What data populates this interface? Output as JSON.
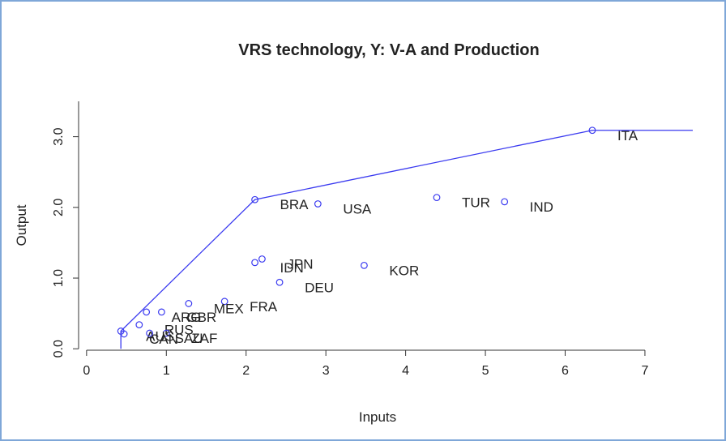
{
  "chart_data": {
    "type": "scatter",
    "title": "VRS technology, Y: V-A and Production",
    "x_label": "Inputs",
    "y_label": "Output",
    "categories": [
      "ITA",
      "BRA",
      "USA",
      "TUR",
      "IND",
      "KOR",
      "JPN",
      "IDN",
      "DEU",
      "FRA",
      "MEX",
      "ARG",
      "GBR",
      "RUS",
      "ZAF",
      "AUS",
      "CAN",
      "SAU"
    ],
    "x": [
      6.34,
      2.11,
      2.9,
      4.39,
      5.24,
      3.48,
      2.2,
      2.11,
      2.42,
      1.73,
      1.28,
      0.75,
      0.94,
      0.66,
      1.0,
      0.43,
      0.47,
      0.79
    ],
    "values": [
      3.09,
      2.11,
      2.05,
      2.14,
      2.08,
      1.18,
      1.27,
      1.22,
      0.94,
      0.67,
      0.64,
      0.52,
      0.52,
      0.34,
      0.22,
      0.25,
      0.21,
      0.22
    ],
    "color": "#3a3af0",
    "frontier": {
      "x": [
        0.43,
        0.43,
        2.11,
        6.34,
        7.6
      ],
      "values": [
        0,
        0.25,
        2.11,
        3.09,
        3.09
      ],
      "color": "#3a3af0"
    },
    "xlim": [
      -0.1,
      7.6
    ],
    "ylim": [
      -0.02,
      3.5
    ],
    "xticks": [
      0,
      1,
      2,
      3,
      4,
      5,
      6,
      7
    ],
    "yticks": [
      {
        "value": 0,
        "label": "0.0"
      },
      {
        "value": 1,
        "label": "1.0"
      },
      {
        "value": 2,
        "label": "2.0"
      },
      {
        "value": 3,
        "label": "3.0"
      }
    ]
  }
}
